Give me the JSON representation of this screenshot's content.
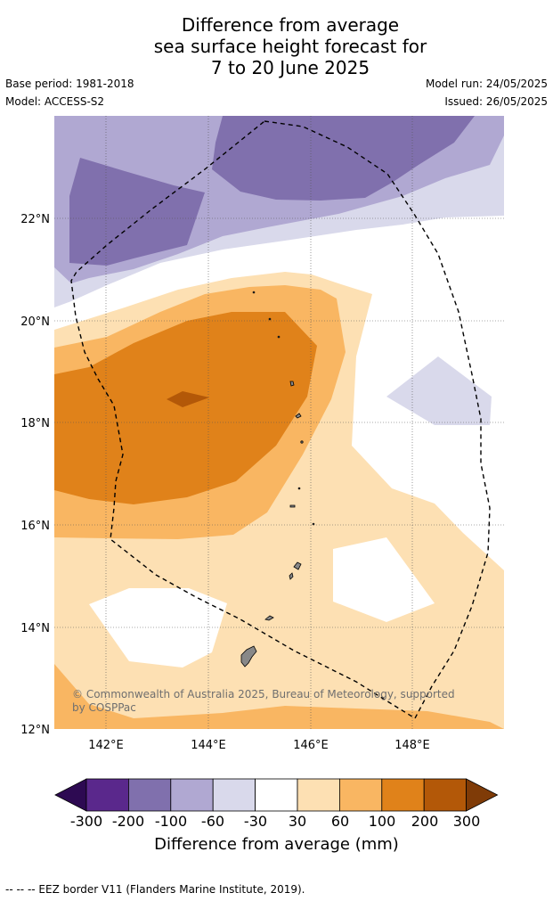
{
  "title": {
    "line1": "Difference from average",
    "line2": "sea surface height forecast for",
    "line3": "7 to 20 June 2025"
  },
  "meta": {
    "base_period": "Base period: 1981-2018",
    "model": "Model: ACCESS-S2",
    "model_run": "Model run: 24/05/2025",
    "issued": "Issued: 26/05/2025"
  },
  "map": {
    "lat_labels": [
      "22°N",
      "20°N",
      "18°N",
      "16°N",
      "14°N",
      "12°N"
    ],
    "lon_labels": [
      "142°E",
      "144°E",
      "146°E",
      "148°E"
    ],
    "lat_range": [
      12,
      24
    ],
    "lon_range": [
      141,
      149.8
    ],
    "credit": "© Commonwealth of Australia 2025, Bureau of Meteorology, supported by COSPPac"
  },
  "colorbar": {
    "ticks": [
      "-300",
      "-200",
      "-100",
      "-60",
      "-30",
      "30",
      "60",
      "100",
      "200",
      "300"
    ],
    "colors": [
      "#2d0a52",
      "#5a288c",
      "#8070ad",
      "#b0a8d2",
      "#d9d9eb",
      "#ffffff",
      "#fde0b3",
      "#f9b662",
      "#e0821a",
      "#b35808",
      "#7f3b07"
    ],
    "label": "Difference from average (mm)"
  },
  "footer": "--  --  -- EEZ border V11 (Flanders Marine Institute, 2019)."
}
